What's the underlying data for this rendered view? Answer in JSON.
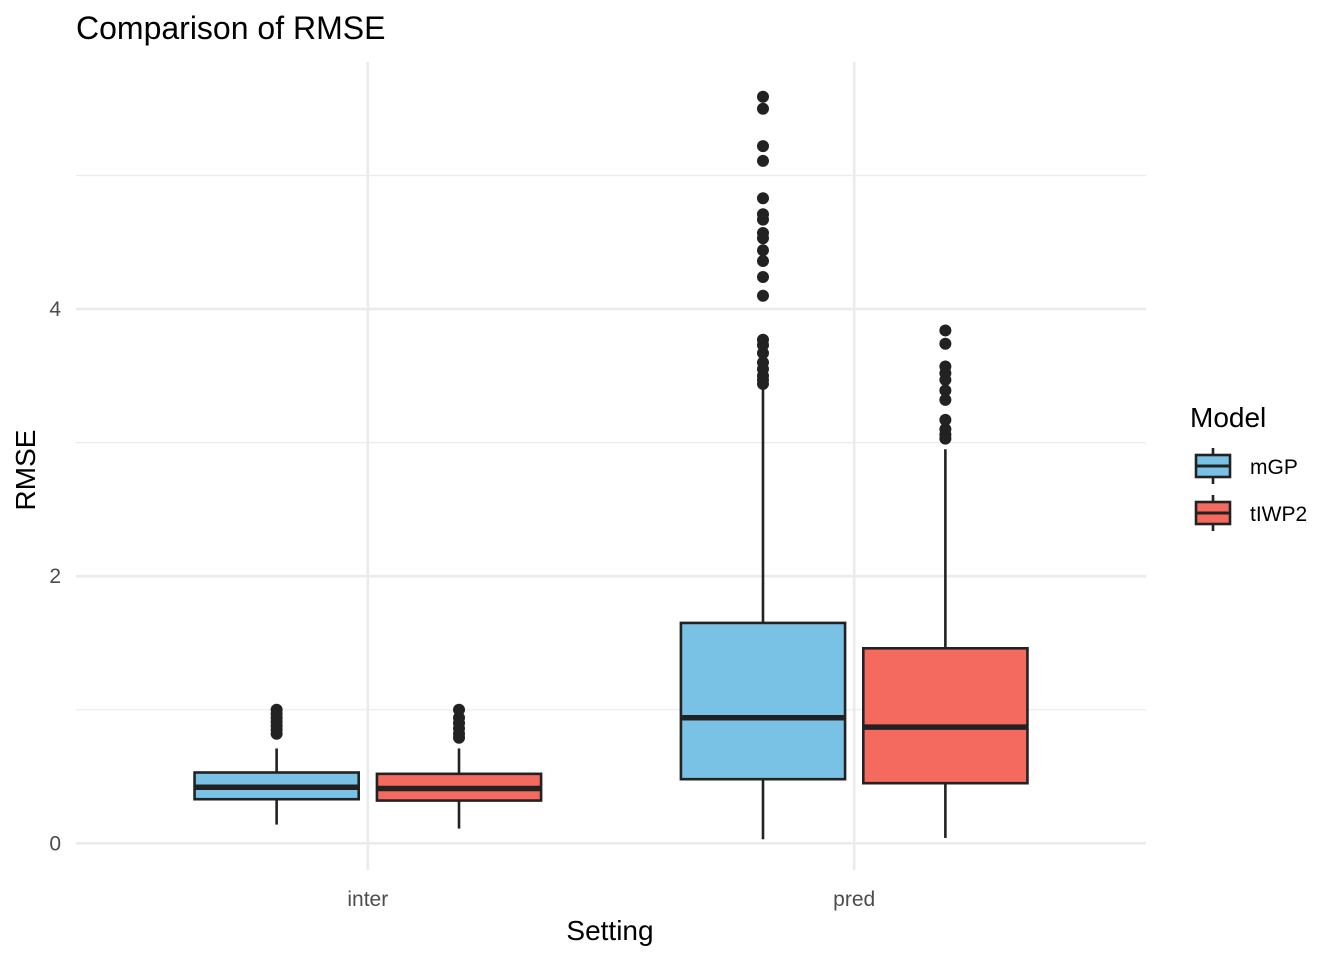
{
  "chart_data": {
    "type": "boxplot",
    "title": "Comparison of RMSE",
    "xlabel": "Setting",
    "ylabel": "RMSE",
    "categories": [
      "inter",
      "pred"
    ],
    "ylim": [
      -0.2,
      5.85
    ],
    "y_ticks": [
      0,
      2,
      4
    ],
    "y_tick_labels": [
      "0",
      "2",
      "4"
    ],
    "grid": true,
    "legend": {
      "title": "Model",
      "position": "right"
    },
    "series": [
      {
        "name": "mGP",
        "color": "#79C1E5",
        "boxes": [
          {
            "category": "inter",
            "whisker_low": 0.14,
            "q1": 0.33,
            "median": 0.42,
            "q3": 0.53,
            "whisker_high": 0.71,
            "outliers": [
              0.82,
              0.85,
              0.88,
              0.91,
              0.94,
              0.97,
              1.0
            ]
          },
          {
            "category": "pred",
            "whisker_low": 0.03,
            "q1": 0.48,
            "median": 0.94,
            "q3": 1.65,
            "whisker_high": 3.4,
            "outliers": [
              3.44,
              3.47,
              3.5,
              3.55,
              3.6,
              3.67,
              3.73,
              3.77,
              4.1,
              4.24,
              4.36,
              4.44,
              4.53,
              4.57,
              4.67,
              4.71,
              4.83,
              5.11,
              5.22,
              5.5,
              5.59
            ]
          }
        ]
      },
      {
        "name": "tIWP2",
        "color": "#F46A5F",
        "boxes": [
          {
            "category": "inter",
            "whisker_low": 0.11,
            "q1": 0.32,
            "median": 0.41,
            "q3": 0.52,
            "whisker_high": 0.71,
            "outliers": [
              0.79,
              0.82,
              0.86,
              0.9,
              0.94,
              1.0
            ]
          },
          {
            "category": "pred",
            "whisker_low": 0.04,
            "q1": 0.45,
            "median": 0.87,
            "q3": 1.46,
            "whisker_high": 2.95,
            "outliers": [
              3.03,
              3.06,
              3.1,
              3.17,
              3.32,
              3.39,
              3.47,
              3.52,
              3.57,
              3.74,
              3.84
            ]
          }
        ]
      }
    ]
  }
}
